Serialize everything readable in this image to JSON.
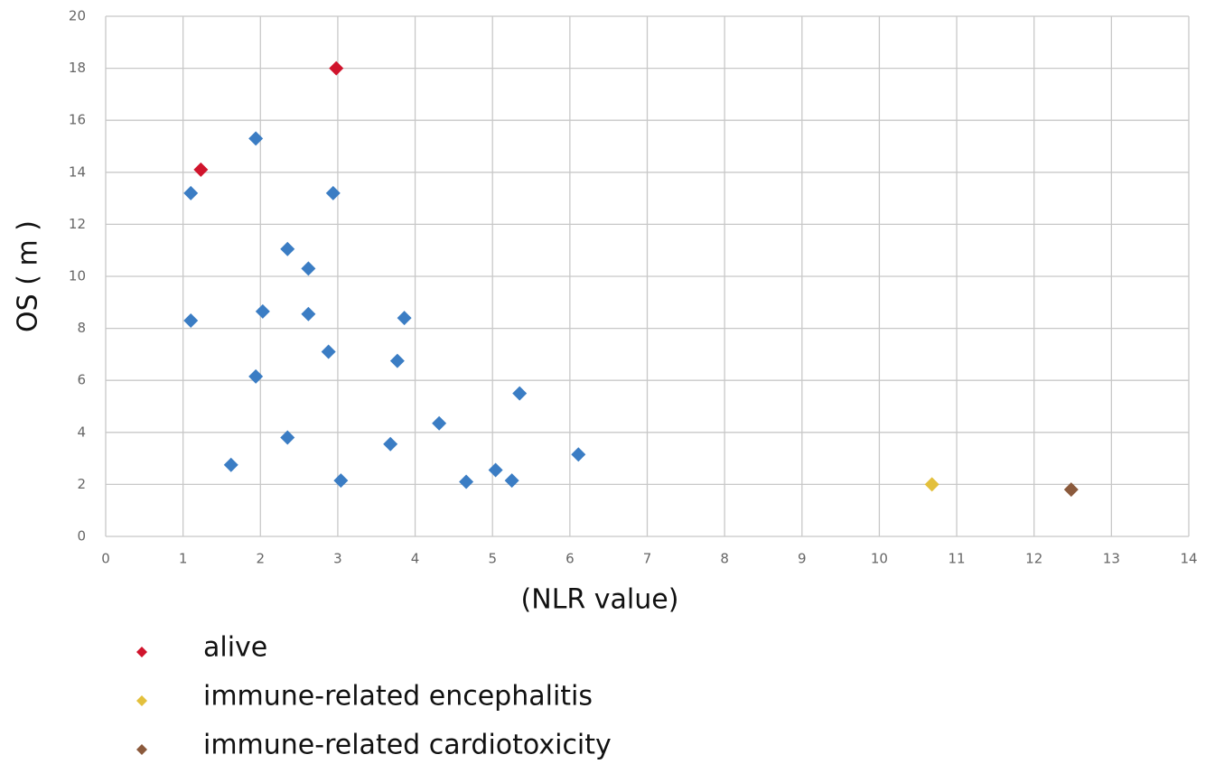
{
  "chart_data": {
    "type": "scatter",
    "x_label": "(NLR value)",
    "y_label": "OS ( m )",
    "xlim": [
      0,
      14
    ],
    "xticks": [
      0,
      1,
      2,
      3,
      4,
      5,
      6,
      7,
      8,
      9,
      10,
      11,
      12,
      13,
      14
    ],
    "ylim": [
      0,
      20
    ],
    "yticks": [
      0,
      2,
      4,
      6,
      8,
      10,
      12,
      14,
      16,
      18,
      20
    ],
    "grid": true,
    "series": [
      {
        "color": "#3b7dc4",
        "x": [
          1.1,
          1.1,
          1.62,
          1.94,
          1.94,
          2.03,
          2.35,
          2.35,
          2.62,
          2.62,
          2.88,
          2.94,
          3.04,
          3.68,
          3.77,
          3.86,
          4.31,
          4.66,
          5.04,
          5.25,
          5.35,
          6.11
        ],
        "values": [
          13.2,
          8.3,
          2.75,
          15.3,
          6.15,
          8.65,
          11.05,
          3.8,
          10.3,
          8.55,
          7.1,
          13.2,
          2.15,
          3.55,
          6.75,
          8.4,
          4.35,
          2.1,
          2.55,
          2.15,
          5.5,
          3.15
        ]
      },
      {
        "name": "alive",
        "color": "#d0142c",
        "x": [
          1.23,
          2.98
        ],
        "values": [
          14.1,
          18.0
        ]
      },
      {
        "name": "immune-related encephalitis",
        "color": "#e3c03c",
        "x": [
          10.68
        ],
        "values": [
          2.0
        ]
      },
      {
        "name": "immune-related cardiotoxicity",
        "color": "#8b5a3c",
        "x": [
          12.48
        ],
        "values": [
          1.8
        ]
      }
    ]
  }
}
